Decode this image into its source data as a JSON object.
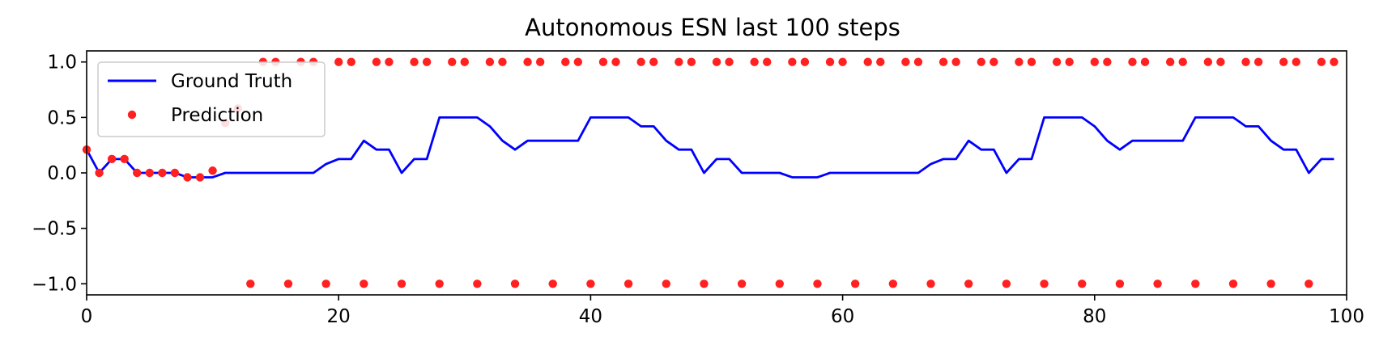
{
  "chart_data": {
    "type": "line",
    "title": "Autonomous ESN last 100 steps",
    "xlabel": "",
    "ylabel": "",
    "xlim": [
      0,
      100
    ],
    "ylim": [
      -1.1,
      1.1
    ],
    "xticks": [
      0,
      20,
      40,
      60,
      80,
      100
    ],
    "xtick_labels": [
      "0",
      "20",
      "40",
      "60",
      "80",
      "100"
    ],
    "yticks": [
      1.0,
      0.5,
      0.0,
      -0.5,
      -1.0
    ],
    "ytick_labels": [
      "1.0",
      "0.5",
      "0.0",
      "−0.5",
      "−1.0"
    ],
    "grid": false,
    "legend_position": "upper-left",
    "series": [
      {
        "name": "Ground Truth",
        "style": "line",
        "color": "#0000ff",
        "x": [
          0,
          1,
          2,
          3,
          4,
          5,
          6,
          7,
          8,
          9,
          10,
          11,
          12,
          13,
          14,
          15,
          16,
          17,
          18,
          19,
          20,
          21,
          22,
          23,
          24,
          25,
          26,
          27,
          28,
          29,
          30,
          31,
          32,
          33,
          34,
          35,
          36,
          37,
          38,
          39,
          40,
          41,
          42,
          43,
          44,
          45,
          46,
          47,
          48,
          49,
          50,
          51,
          52,
          53,
          54,
          55,
          56,
          57,
          58,
          59,
          60,
          61,
          62,
          63,
          64,
          65,
          66,
          67,
          68,
          69,
          70,
          71,
          72,
          73,
          74,
          75,
          76,
          77,
          78,
          79,
          80,
          81,
          82,
          83,
          84,
          85,
          86,
          87,
          88,
          89,
          90,
          91,
          92,
          93,
          94,
          95,
          96,
          97,
          98,
          99
        ],
        "y": [
          0.21,
          0.0,
          0.125,
          0.125,
          0.0,
          0.0,
          0.0,
          0.0,
          -0.04,
          -0.04,
          -0.04,
          0.0,
          0.0,
          0.0,
          0.0,
          0.0,
          0.0,
          0.0,
          0.0,
          0.08,
          0.125,
          0.125,
          0.29,
          0.21,
          0.21,
          0.0,
          0.125,
          0.125,
          0.5,
          0.5,
          0.5,
          0.5,
          0.42,
          0.29,
          0.21,
          0.29,
          0.29,
          0.29,
          0.29,
          0.29,
          0.5,
          0.5,
          0.5,
          0.5,
          0.42,
          0.42,
          0.29,
          0.21,
          0.21,
          0.0,
          0.125,
          0.125,
          0.0,
          0.0,
          0.0,
          0.0,
          -0.04,
          -0.04,
          -0.04,
          0.0,
          0.0,
          0.0,
          0.0,
          0.0,
          0.0,
          0.0,
          0.0,
          0.08,
          0.125,
          0.125,
          0.29,
          0.21,
          0.21,
          0.0,
          0.125,
          0.125,
          0.5,
          0.5,
          0.5,
          0.5,
          0.42,
          0.29,
          0.21,
          0.29,
          0.29,
          0.29,
          0.29,
          0.29,
          0.5,
          0.5,
          0.5,
          0.5,
          0.42,
          0.42,
          0.29,
          0.21,
          0.21,
          0.0,
          0.125,
          0.125
        ]
      },
      {
        "name": "Prediction",
        "style": "points",
        "color": "#ff2020",
        "x": [
          0,
          1,
          2,
          3,
          4,
          5,
          6,
          7,
          8,
          9,
          10,
          11,
          12,
          13,
          14,
          15,
          16,
          17,
          18,
          19,
          20,
          21,
          22,
          23,
          24,
          25,
          26,
          27,
          28,
          29,
          30,
          31,
          32,
          33,
          34,
          35,
          36,
          37,
          38,
          39,
          40,
          41,
          42,
          43,
          44,
          45,
          46,
          47,
          48,
          49,
          50,
          51,
          52,
          53,
          54,
          55,
          56,
          57,
          58,
          59,
          60,
          61,
          62,
          63,
          64,
          65,
          66,
          67,
          68,
          69,
          70,
          71,
          72,
          73,
          74,
          75,
          76,
          77,
          78,
          79,
          80,
          81,
          82,
          83,
          84,
          85,
          86,
          87,
          88,
          89,
          90,
          91,
          92,
          93,
          94,
          95,
          96,
          97,
          98,
          99
        ],
        "y": [
          0.21,
          0.0,
          0.125,
          0.125,
          0.0,
          0.0,
          0.0,
          0.0,
          -0.04,
          -0.04,
          0.02,
          0.45,
          0.58,
          -1,
          1,
          1,
          -1,
          1,
          1,
          -1,
          1,
          1,
          -1,
          1,
          1,
          -1,
          1,
          1,
          -1,
          1,
          1,
          -1,
          1,
          1,
          -1,
          1,
          1,
          -1,
          1,
          1,
          -1,
          1,
          1,
          -1,
          1,
          1,
          -1,
          1,
          1,
          -1,
          1,
          1,
          -1,
          1,
          1,
          -1,
          1,
          1,
          -1,
          1,
          1,
          -1,
          1,
          1,
          -1,
          1,
          1,
          -1,
          1,
          1,
          -1,
          1,
          1,
          -1,
          1,
          1,
          -1,
          1,
          1,
          -1,
          1,
          1,
          -1,
          1,
          1,
          -1,
          1,
          1,
          -1,
          1,
          1,
          -1,
          1,
          1,
          -1,
          1,
          1,
          -1,
          1,
          1
        ]
      }
    ]
  }
}
